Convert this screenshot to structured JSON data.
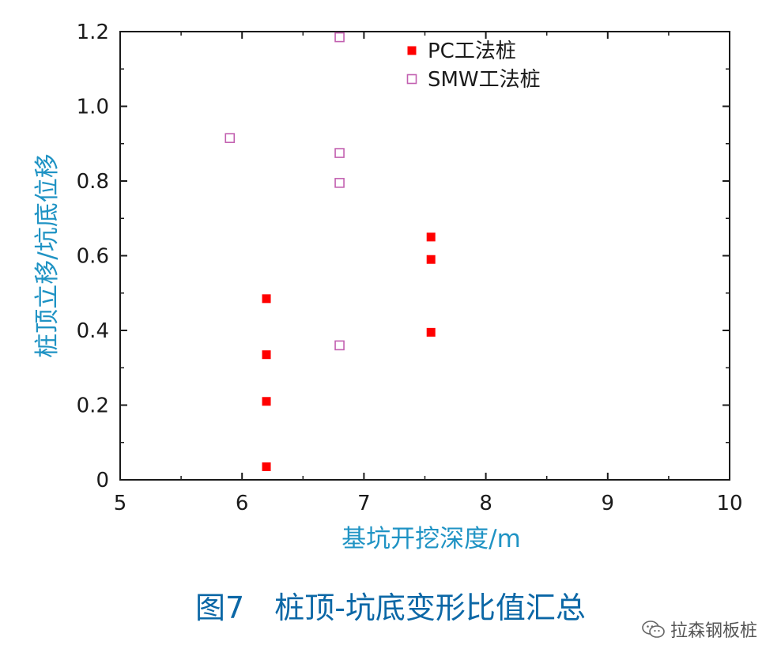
{
  "chart_data": {
    "type": "scatter",
    "xlabel": "基坑开挖深度/m",
    "ylabel": "桩顶立移/坑底位移",
    "xlim": [
      5,
      10
    ],
    "ylim": [
      0,
      1.2
    ],
    "x_ticks": [
      "5",
      "6",
      "7",
      "8",
      "9",
      "10"
    ],
    "y_ticks": [
      "0",
      "0.2",
      "0.4",
      "0.6",
      "0.8",
      "1.0",
      "1.2"
    ],
    "legend_position": "top-right",
    "series": [
      {
        "name": "PC工法桩",
        "marker": "filled-square",
        "color": "#ff0000",
        "points": [
          {
            "x": 6.2,
            "y": 0.485
          },
          {
            "x": 6.2,
            "y": 0.335
          },
          {
            "x": 6.2,
            "y": 0.21
          },
          {
            "x": 6.2,
            "y": 0.035
          },
          {
            "x": 7.55,
            "y": 0.65
          },
          {
            "x": 7.55,
            "y": 0.59
          },
          {
            "x": 7.55,
            "y": 0.395
          }
        ]
      },
      {
        "name": "SMW工法桩",
        "marker": "open-square",
        "color": "#c25fb0",
        "points": [
          {
            "x": 5.9,
            "y": 0.915
          },
          {
            "x": 6.8,
            "y": 1.185
          },
          {
            "x": 6.8,
            "y": 0.875
          },
          {
            "x": 6.8,
            "y": 0.795
          },
          {
            "x": 6.8,
            "y": 0.36
          }
        ]
      }
    ]
  },
  "caption": "图7　桩顶-坑底变形比值汇总",
  "watermark": {
    "icon": "wechat-icon",
    "text": "拉森钢板桩"
  }
}
